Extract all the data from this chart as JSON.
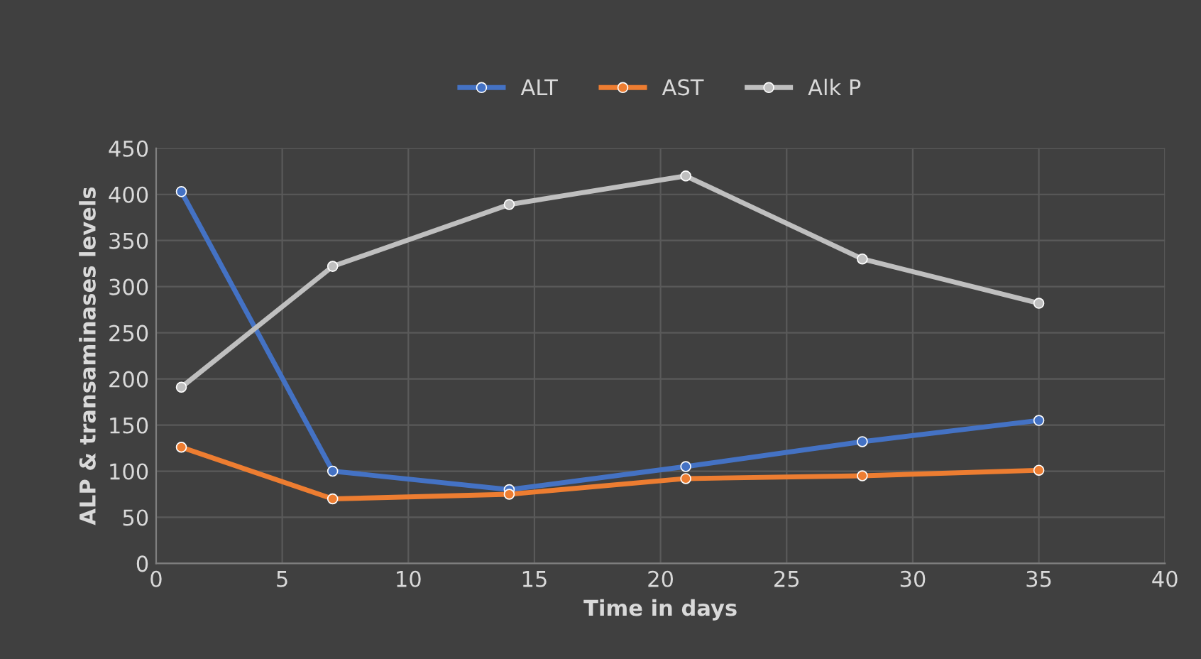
{
  "chart_data": {
    "type": "line",
    "xlabel": "Time in days",
    "ylabel": "ALP & transaminases levels",
    "x": [
      1,
      7,
      14,
      21,
      28,
      35
    ],
    "series": [
      {
        "name": "ALT",
        "color": "#4472c4",
        "values": [
          403,
          100,
          80,
          105,
          132,
          155
        ]
      },
      {
        "name": "AST",
        "color": "#ed7d31",
        "values": [
          126,
          70,
          75,
          92,
          95,
          101
        ]
      },
      {
        "name": "Alk P",
        "color": "#bfbfbf",
        "values": [
          191,
          322,
          389,
          420,
          330,
          282
        ]
      }
    ],
    "xlim": [
      0,
      40
    ],
    "xticks": [
      0,
      5,
      10,
      15,
      20,
      25,
      30,
      35,
      40
    ],
    "ylim": [
      0,
      450
    ],
    "yticks": [
      0,
      50,
      100,
      150,
      200,
      250,
      300,
      350,
      400,
      450
    ],
    "grid": true,
    "legend": "top",
    "marker": "circle",
    "line_style": "solid"
  }
}
